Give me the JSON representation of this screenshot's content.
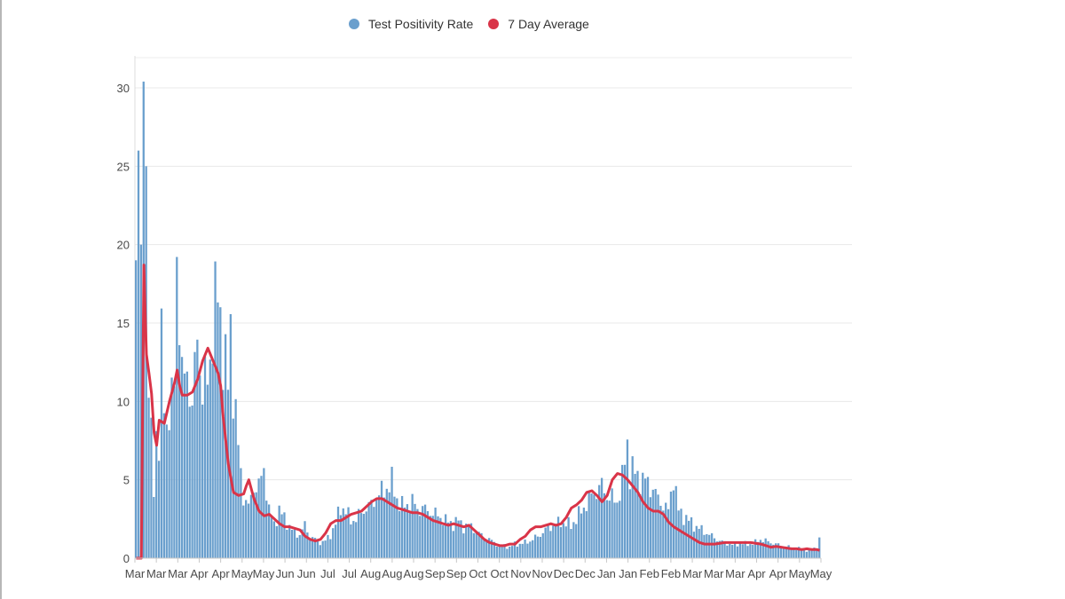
{
  "legend": {
    "items": [
      {
        "label": "Test Positivity Rate",
        "color": "#6a9fcd"
      },
      {
        "label": "7 Day Average",
        "color": "#d93448"
      }
    ]
  },
  "chart_data": {
    "type": "bar",
    "title": "",
    "xlabel": "",
    "ylabel": "",
    "ylim": [
      0,
      30
    ],
    "y_ticks": [
      0,
      5,
      10,
      15,
      20,
      25,
      30
    ],
    "grid": true,
    "legend_position": "top-center",
    "x_tick_labels": [
      "Mar",
      "Mar",
      "Mar",
      "Apr",
      "Apr",
      "May",
      "May",
      "Jun",
      "Jun",
      "Jul",
      "Jul",
      "Aug",
      "Aug",
      "Aug",
      "Sep",
      "Sep",
      "Oct",
      "Oct",
      "Nov",
      "Nov",
      "Dec",
      "Dec",
      "Jan",
      "Jan",
      "Feb",
      "Feb",
      "Mar",
      "Mar",
      "Mar",
      "Apr",
      "Apr",
      "May",
      "May"
    ],
    "series": [
      {
        "name": "Test Positivity Rate",
        "kind": "bar",
        "color": "#6a9fcd",
        "anchors": [
          [
            0,
            19
          ],
          [
            1,
            26
          ],
          [
            2,
            20
          ],
          [
            3,
            30.4
          ],
          [
            4,
            25
          ],
          [
            5,
            10
          ],
          [
            6,
            7.8
          ],
          [
            7,
            4.7
          ],
          [
            8,
            8
          ],
          [
            9,
            6.5
          ],
          [
            10,
            13.2
          ],
          [
            12,
            8.5
          ],
          [
            14,
            9.5
          ],
          [
            15,
            12
          ],
          [
            16,
            19.6
          ],
          [
            18,
            11
          ],
          [
            20,
            12.5
          ],
          [
            22,
            9
          ],
          [
            24,
            15
          ],
          [
            26,
            10
          ],
          [
            28,
            12
          ],
          [
            30,
            14
          ],
          [
            32,
            17.4
          ],
          [
            33,
            15.8
          ],
          [
            34,
            13
          ],
          [
            36,
            11
          ],
          [
            37,
            15
          ],
          [
            38,
            11
          ],
          [
            40,
            7
          ],
          [
            42,
            4
          ],
          [
            44,
            3.2
          ],
          [
            46,
            4.6
          ],
          [
            48,
            4.5
          ],
          [
            50,
            5.8
          ],
          [
            52,
            3
          ],
          [
            54,
            2.2
          ],
          [
            56,
            3
          ],
          [
            58,
            2.6
          ],
          [
            60,
            2
          ],
          [
            62,
            1.6
          ],
          [
            64,
            1.5
          ],
          [
            66,
            2.1
          ],
          [
            68,
            1.4
          ],
          [
            70,
            1.2
          ],
          [
            72,
            1.0
          ],
          [
            74,
            1.1
          ],
          [
            76,
            1.5
          ],
          [
            78,
            2.2
          ],
          [
            80,
            3.3
          ],
          [
            82,
            3
          ],
          [
            84,
            2.4
          ],
          [
            86,
            2.5
          ],
          [
            88,
            2.9
          ],
          [
            90,
            3.2
          ],
          [
            92,
            3.4
          ],
          [
            94,
            3.9
          ],
          [
            96,
            4.2
          ],
          [
            98,
            4.5
          ],
          [
            100,
            4.8
          ],
          [
            102,
            3.8
          ],
          [
            104,
            3.3
          ],
          [
            106,
            3.4
          ],
          [
            108,
            3.6
          ],
          [
            110,
            3.1
          ],
          [
            112,
            3.2
          ],
          [
            114,
            3.0
          ],
          [
            116,
            2.9
          ],
          [
            118,
            2.7
          ],
          [
            120,
            2.5
          ],
          [
            122,
            2.3
          ],
          [
            124,
            2.2
          ],
          [
            126,
            2.4
          ],
          [
            128,
            2.0
          ],
          [
            130,
            2.1
          ],
          [
            132,
            1.9
          ],
          [
            134,
            1.6
          ],
          [
            136,
            1.3
          ],
          [
            138,
            1.2
          ],
          [
            140,
            1.0
          ],
          [
            142,
            0.8
          ],
          [
            144,
            0.8
          ],
          [
            146,
            0.7
          ],
          [
            148,
            0.9
          ],
          [
            150,
            0.9
          ],
          [
            152,
            1.0
          ],
          [
            154,
            1.1
          ],
          [
            156,
            1.3
          ],
          [
            158,
            1.5
          ],
          [
            160,
            1.8
          ],
          [
            162,
            2.0
          ],
          [
            164,
            2.2
          ],
          [
            166,
            2.3
          ],
          [
            168,
            2.2
          ],
          [
            170,
            2.1
          ],
          [
            172,
            2.5
          ],
          [
            174,
            3.0
          ],
          [
            176,
            3.5
          ],
          [
            178,
            4.0
          ],
          [
            180,
            4.3
          ],
          [
            182,
            4.6
          ],
          [
            184,
            4.0
          ],
          [
            186,
            3.8
          ],
          [
            188,
            3.6
          ],
          [
            190,
            5.0
          ],
          [
            192,
            7.3
          ],
          [
            193,
            5.5
          ],
          [
            194,
            5.6
          ],
          [
            196,
            5.2
          ],
          [
            198,
            5.0
          ],
          [
            200,
            4.8
          ],
          [
            202,
            4.4
          ],
          [
            204,
            3.8
          ],
          [
            206,
            3.4
          ],
          [
            208,
            3.0
          ],
          [
            210,
            5.3
          ],
          [
            212,
            3.0
          ],
          [
            214,
            2.7
          ],
          [
            216,
            2.4
          ],
          [
            218,
            2.1
          ],
          [
            220,
            1.9
          ],
          [
            222,
            1.7
          ],
          [
            224,
            1.5
          ],
          [
            226,
            1.3
          ],
          [
            228,
            1.1
          ],
          [
            230,
            1.0
          ],
          [
            232,
            0.9
          ],
          [
            234,
            0.8
          ],
          [
            236,
            1.0
          ],
          [
            238,
            0.9
          ],
          [
            240,
            0.9
          ],
          [
            242,
            1.0
          ],
          [
            244,
            1.2
          ],
          [
            246,
            1.1
          ],
          [
            248,
            1.0
          ],
          [
            250,
            0.9
          ],
          [
            252,
            0.8
          ],
          [
            254,
            0.7
          ],
          [
            256,
            0.7
          ],
          [
            258,
            0.6
          ],
          [
            260,
            0.6
          ],
          [
            262,
            0.5
          ],
          [
            264,
            0.6
          ],
          [
            266,
            0.7
          ],
          [
            267,
            1.2
          ]
        ]
      },
      {
        "name": "7 Day Average",
        "kind": "line",
        "color": "#d93448",
        "anchors": [
          [
            0,
            0
          ],
          [
            1,
            0
          ],
          [
            2,
            0
          ],
          [
            3,
            18.7
          ],
          [
            4,
            13
          ],
          [
            5,
            11.8
          ],
          [
            6,
            10.5
          ],
          [
            7,
            8
          ],
          [
            8,
            7.2
          ],
          [
            9,
            8.8
          ],
          [
            11,
            8.6
          ],
          [
            13,
            10
          ],
          [
            14,
            10.6
          ],
          [
            15,
            11.2
          ],
          [
            16,
            12
          ],
          [
            17,
            11
          ],
          [
            18,
            10.4
          ],
          [
            20,
            10.4
          ],
          [
            22,
            10.6
          ],
          [
            24,
            11.4
          ],
          [
            26,
            12.6
          ],
          [
            28,
            13.4
          ],
          [
            30,
            12.6
          ],
          [
            32,
            11.8
          ],
          [
            33,
            11.0
          ],
          [
            34,
            9
          ],
          [
            36,
            6
          ],
          [
            38,
            4.2
          ],
          [
            40,
            4.0
          ],
          [
            42,
            4.1
          ],
          [
            43,
            4.6
          ],
          [
            44,
            5.0
          ],
          [
            46,
            3.8
          ],
          [
            48,
            3.0
          ],
          [
            50,
            2.7
          ],
          [
            52,
            2.8
          ],
          [
            54,
            2.5
          ],
          [
            56,
            2.2
          ],
          [
            58,
            2.0
          ],
          [
            60,
            2.0
          ],
          [
            62,
            1.9
          ],
          [
            64,
            1.8
          ],
          [
            66,
            1.4
          ],
          [
            68,
            1.2
          ],
          [
            70,
            1.1
          ],
          [
            72,
            1.2
          ],
          [
            74,
            1.6
          ],
          [
            76,
            2.2
          ],
          [
            78,
            2.4
          ],
          [
            80,
            2.4
          ],
          [
            82,
            2.6
          ],
          [
            84,
            2.8
          ],
          [
            86,
            2.9
          ],
          [
            88,
            3.0
          ],
          [
            90,
            3.3
          ],
          [
            92,
            3.6
          ],
          [
            94,
            3.8
          ],
          [
            96,
            3.8
          ],
          [
            98,
            3.6
          ],
          [
            100,
            3.4
          ],
          [
            102,
            3.2
          ],
          [
            104,
            3.1
          ],
          [
            106,
            3.0
          ],
          [
            108,
            2.9
          ],
          [
            110,
            2.9
          ],
          [
            112,
            2.8
          ],
          [
            114,
            2.6
          ],
          [
            116,
            2.4
          ],
          [
            118,
            2.3
          ],
          [
            120,
            2.2
          ],
          [
            122,
            2.1
          ],
          [
            124,
            2.2
          ],
          [
            126,
            2.1
          ],
          [
            128,
            2.0
          ],
          [
            130,
            2.1
          ],
          [
            132,
            1.8
          ],
          [
            134,
            1.5
          ],
          [
            136,
            1.2
          ],
          [
            138,
            1.0
          ],
          [
            140,
            0.9
          ],
          [
            142,
            0.8
          ],
          [
            144,
            0.8
          ],
          [
            146,
            0.9
          ],
          [
            148,
            0.9
          ],
          [
            150,
            1.2
          ],
          [
            152,
            1.4
          ],
          [
            154,
            1.8
          ],
          [
            156,
            2.0
          ],
          [
            158,
            2.0
          ],
          [
            160,
            2.1
          ],
          [
            162,
            2.2
          ],
          [
            164,
            2.1
          ],
          [
            166,
            2.2
          ],
          [
            168,
            2.6
          ],
          [
            170,
            3.2
          ],
          [
            172,
            3.4
          ],
          [
            174,
            3.7
          ],
          [
            176,
            4.2
          ],
          [
            178,
            4.3
          ],
          [
            180,
            4.0
          ],
          [
            182,
            3.6
          ],
          [
            184,
            4.0
          ],
          [
            186,
            5.0
          ],
          [
            188,
            5.4
          ],
          [
            190,
            5.3
          ],
          [
            192,
            5.0
          ],
          [
            194,
            4.6
          ],
          [
            196,
            4.2
          ],
          [
            198,
            3.6
          ],
          [
            200,
            3.2
          ],
          [
            202,
            3.0
          ],
          [
            204,
            3.0
          ],
          [
            206,
            2.8
          ],
          [
            208,
            2.3
          ],
          [
            210,
            2.0
          ],
          [
            212,
            1.8
          ],
          [
            214,
            1.6
          ],
          [
            216,
            1.4
          ],
          [
            218,
            1.2
          ],
          [
            220,
            1.0
          ],
          [
            222,
            0.9
          ],
          [
            224,
            0.9
          ],
          [
            226,
            0.9
          ],
          [
            228,
            0.95
          ],
          [
            230,
            1.0
          ],
          [
            232,
            1.0
          ],
          [
            234,
            1.0
          ],
          [
            236,
            1.0
          ],
          [
            238,
            1.0
          ],
          [
            240,
            1.0
          ],
          [
            242,
            0.95
          ],
          [
            244,
            0.9
          ],
          [
            246,
            0.8
          ],
          [
            248,
            0.7
          ],
          [
            250,
            0.75
          ],
          [
            252,
            0.7
          ],
          [
            254,
            0.65
          ],
          [
            256,
            0.6
          ],
          [
            258,
            0.6
          ],
          [
            260,
            0.55
          ],
          [
            262,
            0.6
          ],
          [
            264,
            0.55
          ],
          [
            266,
            0.55
          ],
          [
            267,
            0.5
          ]
        ]
      }
    ]
  }
}
